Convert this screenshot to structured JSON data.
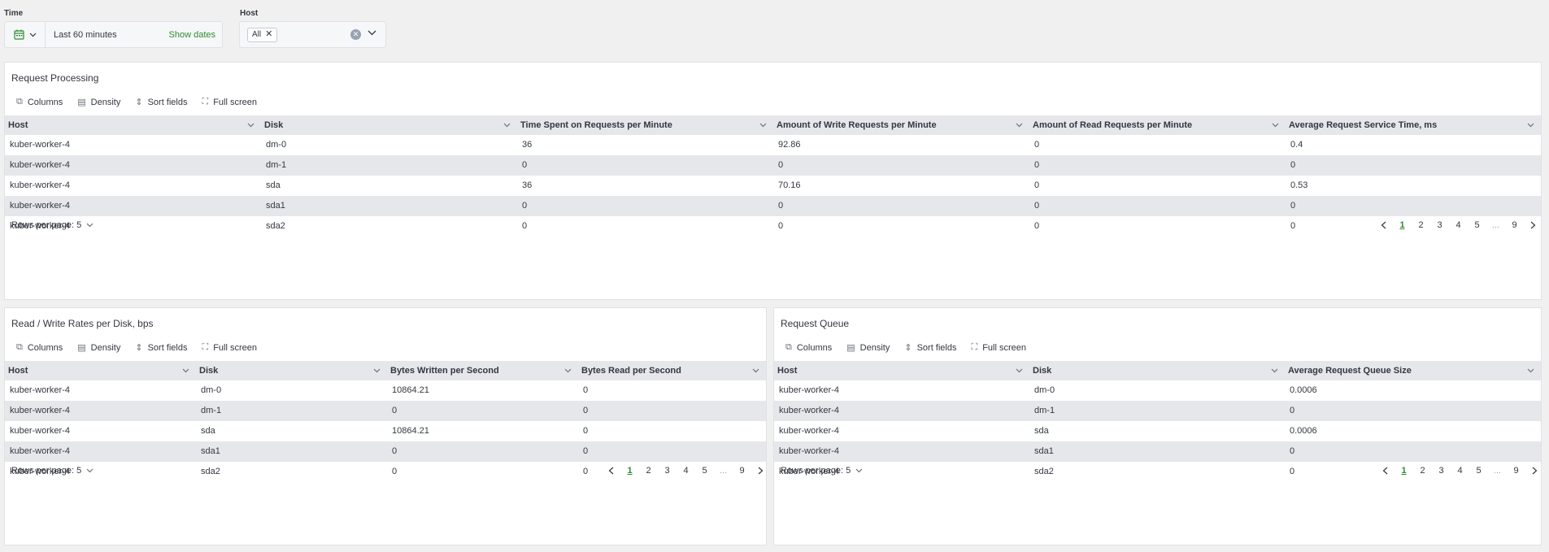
{
  "filters": {
    "time_label": "Time",
    "time_value": "Last 60 minutes",
    "show_dates": "Show dates",
    "host_label": "Host",
    "host_chip": "All"
  },
  "toolbar": {
    "columns": "Columns",
    "density": "Density",
    "sort_fields": "Sort fields",
    "full_screen": "Full screen"
  },
  "rows_per_page": "Rows per page: 5",
  "pagination": {
    "pages": [
      "1",
      "2",
      "3",
      "4",
      "5",
      "...",
      "9"
    ]
  },
  "panels": {
    "request_processing": {
      "title": "Request Processing",
      "columns": [
        "Host",
        "Disk",
        "Time Spent on Requests per Minute",
        "Amount of Write Requests per Minute",
        "Amount of Read Requests per Minute",
        "Average Request Service Time, ms"
      ],
      "rows": [
        [
          "kuber-worker-4",
          "dm-0",
          "36",
          "92.86",
          "0",
          "0.4"
        ],
        [
          "kuber-worker-4",
          "dm-1",
          "0",
          "0",
          "0",
          "0"
        ],
        [
          "kuber-worker-4",
          "sda",
          "36",
          "70.16",
          "0",
          "0.53"
        ],
        [
          "kuber-worker-4",
          "sda1",
          "0",
          "0",
          "0",
          "0"
        ],
        [
          "kuber-worker-4",
          "sda2",
          "0",
          "0",
          "0",
          "0"
        ]
      ]
    },
    "rw_rates": {
      "title": "Read / Write Rates per Disk, bps",
      "columns": [
        "Host",
        "Disk",
        "Bytes Written per Second",
        "Bytes Read per Second"
      ],
      "rows": [
        [
          "kuber-worker-4",
          "dm-0",
          "10864.21",
          "0"
        ],
        [
          "kuber-worker-4",
          "dm-1",
          "0",
          "0"
        ],
        [
          "kuber-worker-4",
          "sda",
          "10864.21",
          "0"
        ],
        [
          "kuber-worker-4",
          "sda1",
          "0",
          "0"
        ],
        [
          "kuber-worker-4",
          "sda2",
          "0",
          "0"
        ]
      ]
    },
    "request_queue": {
      "title": "Request Queue",
      "columns": [
        "Host",
        "Disk",
        "Average Request Queue Size"
      ],
      "rows": [
        [
          "kuber-worker-4",
          "dm-0",
          "0.0006"
        ],
        [
          "kuber-worker-4",
          "dm-1",
          "0"
        ],
        [
          "kuber-worker-4",
          "sda",
          "0.0006"
        ],
        [
          "kuber-worker-4",
          "sda1",
          "0"
        ],
        [
          "kuber-worker-4",
          "sda2",
          "0"
        ]
      ]
    }
  }
}
